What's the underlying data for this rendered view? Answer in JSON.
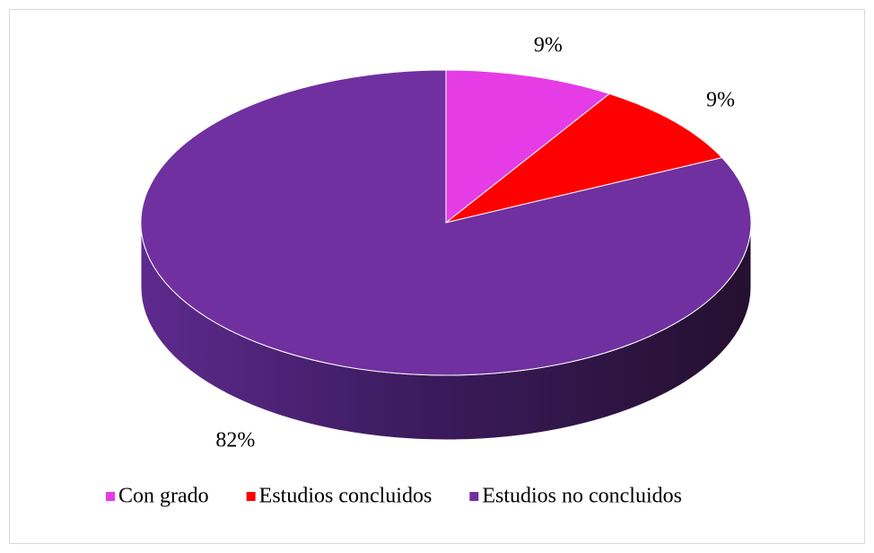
{
  "chart_data": {
    "type": "pie",
    "categories": [
      "Con grado",
      "Estudios concluidos",
      "Estudios no concluidos"
    ],
    "values": [
      9,
      9,
      82
    ],
    "value_labels": [
      "9%",
      "9%",
      "82%"
    ],
    "colors": [
      "#E63CE6",
      "#FF0000",
      "#7030A0"
    ],
    "legend": "bottom"
  }
}
